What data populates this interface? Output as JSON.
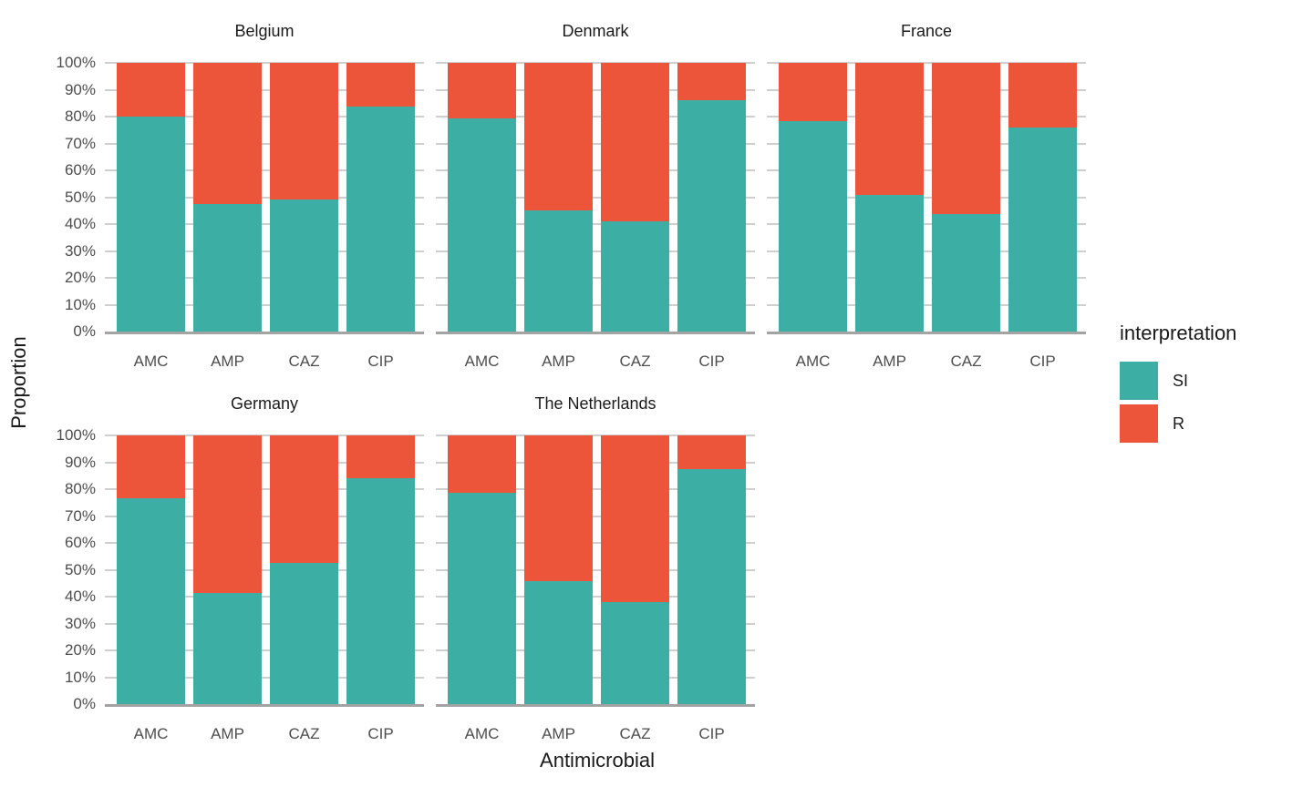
{
  "chart_data": {
    "type": "bar",
    "subtype": "stacked-proportion-faceted",
    "title": "",
    "xlabel": "Antimicrobial",
    "ylabel": "Proportion",
    "categories": [
      "AMC",
      "AMP",
      "CAZ",
      "CIP"
    ],
    "ylim": [
      0,
      100
    ],
    "y_tick_labels": [
      "100%",
      "90%",
      "80%",
      "70%",
      "60%",
      "50%",
      "40%",
      "30%",
      "20%",
      "10%",
      "0%"
    ],
    "grid": true,
    "colors": {
      "SI": "#3CAEA3",
      "R": "#ED553B"
    },
    "legend": {
      "title": "interpretation",
      "position": "right",
      "items": [
        {
          "label": "SI",
          "color": "#3CAEA3"
        },
        {
          "label": "R",
          "color": "#ED553B"
        }
      ]
    },
    "facets": [
      {
        "title": "Belgium",
        "row": 0,
        "col": 0,
        "series": [
          {
            "name": "SI",
            "values": [
              79.9,
              47.4,
              49.0,
              83.6
            ]
          },
          {
            "name": "R",
            "values": [
              20.1,
              52.6,
              51.0,
              16.4
            ]
          }
        ]
      },
      {
        "title": "Denmark",
        "row": 0,
        "col": 1,
        "series": [
          {
            "name": "SI",
            "values": [
              79.2,
              45.0,
              41.0,
              86.1
            ]
          },
          {
            "name": "R",
            "values": [
              20.8,
              55.0,
              59.0,
              13.9
            ]
          }
        ]
      },
      {
        "title": "France",
        "row": 0,
        "col": 2,
        "series": [
          {
            "name": "SI",
            "values": [
              78.2,
              50.9,
              43.8,
              76.0
            ]
          },
          {
            "name": "R",
            "values": [
              21.8,
              49.1,
              56.2,
              24.0
            ]
          }
        ]
      },
      {
        "title": "Germany",
        "row": 1,
        "col": 0,
        "series": [
          {
            "name": "SI",
            "values": [
              76.7,
              41.5,
              52.4,
              84.2
            ]
          },
          {
            "name": "R",
            "values": [
              23.3,
              58.5,
              47.6,
              15.8
            ]
          }
        ]
      },
      {
        "title": "The Netherlands",
        "row": 1,
        "col": 1,
        "series": [
          {
            "name": "SI",
            "values": [
              78.6,
              45.7,
              38.1,
              87.6
            ]
          },
          {
            "name": "R",
            "values": [
              21.4,
              54.3,
              61.9,
              12.4
            ]
          }
        ]
      }
    ]
  }
}
